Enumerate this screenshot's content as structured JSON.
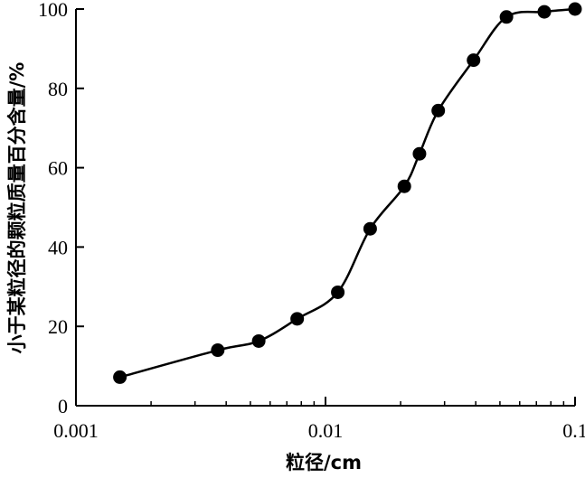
{
  "chart_data": {
    "type": "line",
    "title": "",
    "xlabel": "粒径/cm",
    "ylabel": "小于某粒径的颗粒质量百分含量/%",
    "x_scale": "log",
    "xlim": [
      0.001,
      0.1
    ],
    "ylim": [
      0,
      100
    ],
    "x_ticks": [
      {
        "value": 0.001,
        "label": "0.001"
      },
      {
        "value": 0.01,
        "label": "0.01"
      },
      {
        "value": 0.1,
        "label": "0.1"
      }
    ],
    "y_ticks": [
      {
        "value": 0,
        "label": "0"
      },
      {
        "value": 20,
        "label": "20"
      },
      {
        "value": 40,
        "label": "40"
      },
      {
        "value": 60,
        "label": "60"
      },
      {
        "value": 80,
        "label": "80"
      },
      {
        "value": 100,
        "label": "100"
      }
    ],
    "grid": false,
    "legend": "none",
    "line_color": "#000000",
    "marker_color": "#000000",
    "series": [
      {
        "x": [
          0.0015,
          0.0037,
          0.0054,
          0.0077,
          0.0112,
          0.0151,
          0.0207,
          0.0238,
          0.0283,
          0.0392,
          0.0531,
          0.0753,
          0.1
        ],
        "values": [
          7.2,
          14.0,
          16.3,
          21.9,
          28.6,
          44.6,
          55.3,
          63.5,
          74.4,
          87.1,
          98.0,
          99.3,
          100.0
        ]
      }
    ]
  }
}
